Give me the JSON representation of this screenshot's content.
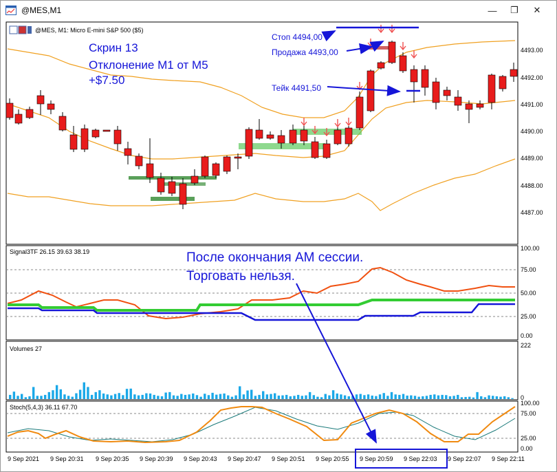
{
  "window": {
    "title": "@MES,M1",
    "minimize_glyph": "—",
    "restore_glyph": "❐",
    "close_glyph": "✕"
  },
  "main_panel": {
    "header": "@MES, M1:  Micro E-mini S&P 500 ($5)",
    "price_labels": [
      "4493.00",
      "4492.00",
      "4491.00",
      "4490.00",
      "4489.00",
      "4488.00",
      "4487.00"
    ],
    "note_lines": [
      "Скрин 13",
      "Отклонение М1 от М5",
      "+$7.50"
    ],
    "stop_label": "Стоп 4494,00",
    "sell_label": "Продажа 4493,00",
    "take_label": "Тейк 4491,50",
    "colors": {
      "bull": "#1a7a1a",
      "bear": "#e81c1c",
      "band": "#f0a020",
      "annotation": "#1515d8"
    }
  },
  "signal_panel": {
    "header": "Signal3TF 26.15 39.63 38.19",
    "levels": [
      "100.00",
      "75.00",
      "50.00",
      "25.00",
      "0.00"
    ],
    "warning_lines": [
      "После окончания АМ сессии.",
      "Торговать нельзя."
    ]
  },
  "volume_panel": {
    "header": "Volumes 27",
    "max_label": "222",
    "zero_label": "0",
    "values": [
      18,
      32,
      14,
      22,
      8,
      12,
      52,
      14,
      14,
      18,
      30,
      38,
      60,
      42,
      20,
      14,
      10,
      25,
      40,
      72,
      52,
      18,
      30,
      38,
      24,
      20,
      16,
      22,
      26,
      17,
      44,
      45,
      20,
      16,
      18,
      25,
      24,
      18,
      14,
      12,
      28,
      30,
      16,
      14,
      22,
      18,
      20,
      24,
      17,
      10,
      23,
      17,
      27,
      19,
      22,
      24,
      16,
      10,
      16,
      55,
      20,
      37,
      40,
      14,
      18,
      34,
      20,
      22,
      25,
      15,
      16,
      18,
      12,
      14,
      18,
      14,
      16,
      30,
      17,
      10,
      8,
      22,
      16,
      38,
      24,
      20,
      16,
      12,
      14,
      20,
      22,
      17,
      20,
      15,
      13,
      20,
      26,
      14,
      30,
      20,
      18,
      22,
      15,
      16,
      14,
      10,
      12,
      14,
      18,
      20,
      16,
      18,
      17,
      12,
      14,
      18,
      8,
      9,
      10,
      7,
      30,
      12,
      8,
      16,
      14,
      12,
      10,
      12,
      8,
      4
    ]
  },
  "stoch_panel": {
    "header": "Stoch(5,4,3) 36.11 67.70",
    "levels": [
      "100.00",
      "75.00",
      "25.00",
      "0.00"
    ]
  },
  "time_axis": [
    "9 Sep 2021",
    "9 Sep 20:31",
    "9 Sep 20:35",
    "9 Sep 20:39",
    "9 Sep 20:43",
    "9 Sep 20:47",
    "9 Sep 20:51",
    "9 Sep 20:55",
    "9 Sep 20:59",
    "9 Sep 22:03",
    "9 Sep 22:07",
    "9 Sep 22:11"
  ]
}
